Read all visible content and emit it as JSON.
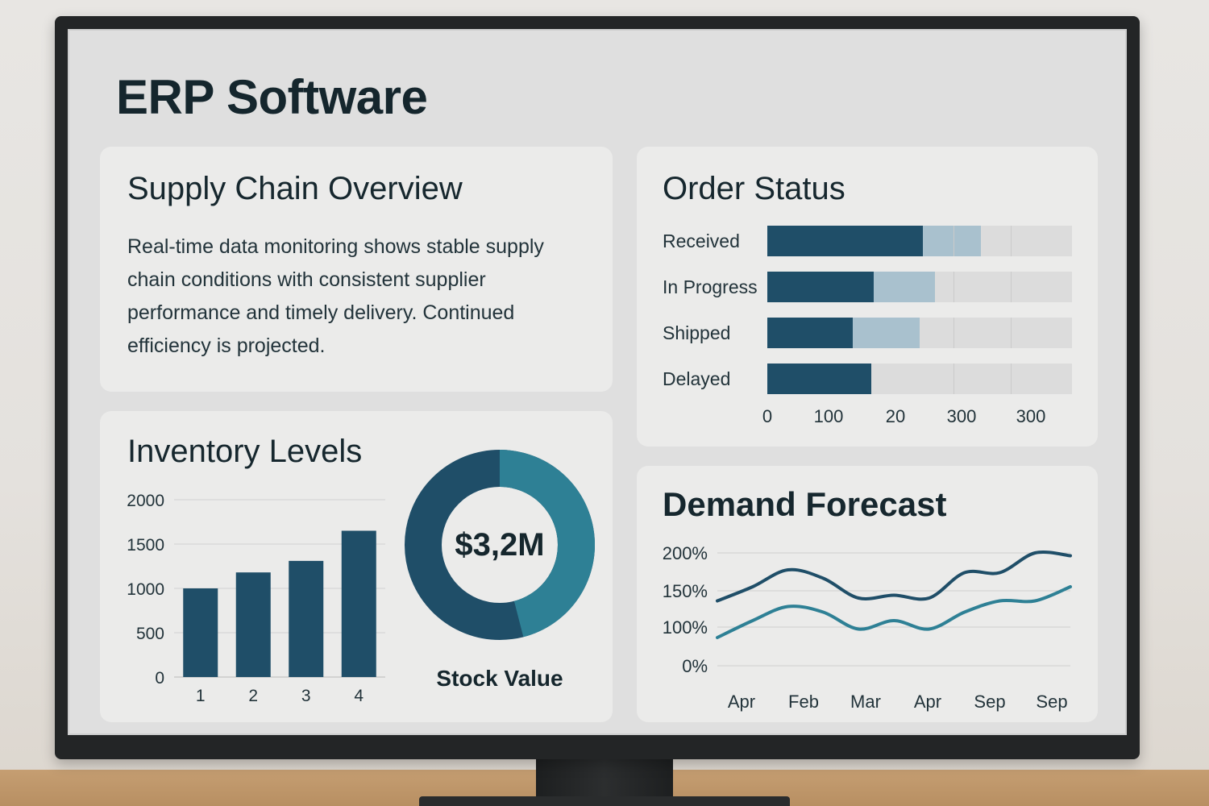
{
  "app": {
    "title": "ERP Software"
  },
  "colors": {
    "dark_teal": "#1f4e68",
    "mid_blue": "#a9c1ce",
    "light_gray": "#dcdcdc",
    "teal_accent": "#2e8095"
  },
  "supply_chain": {
    "title": "Supply Chain Overview",
    "text": "Real-time data monitoring shows stable supply chain conditions with consistent supplier performance and timely delivery. Continued efficiency is projected."
  },
  "order_status": {
    "title": "Order Status",
    "axis_labels": [
      "0",
      "100",
      "20",
      "300",
      "300"
    ],
    "rows": [
      {
        "label": "Received",
        "dark": 0.51,
        "light": 0.19
      },
      {
        "label": "In Progress",
        "dark": 0.35,
        "light": 0.2
      },
      {
        "label": "Shipped",
        "dark": 0.28,
        "light": 0.22
      },
      {
        "label": "Delayed",
        "dark": 0.34,
        "light": 0.0
      }
    ]
  },
  "inventory": {
    "title": "Inventory Levels",
    "stock_value": "$3,2M",
    "stock_caption": "Stock Value",
    "donut_share": 0.46
  },
  "demand_forecast": {
    "title": "Demand Forecast"
  },
  "chart_data": [
    {
      "type": "bar",
      "title": "Inventory Levels",
      "categories": [
        "1",
        "2",
        "3",
        "4"
      ],
      "values": [
        1000,
        1180,
        1310,
        1650
      ],
      "yticks": [
        "0",
        "500",
        "1000",
        "1500",
        "2000"
      ],
      "ylim": [
        0,
        2000
      ],
      "grid": true
    },
    {
      "type": "line",
      "title": "Demand Forecast",
      "xlabels": [
        "Apr",
        "Feb",
        "Mar",
        "Apr",
        "Sep",
        "Sep"
      ],
      "yticks": [
        "0%",
        "100%",
        "150%",
        "200%"
      ],
      "grid": true,
      "series": [
        {
          "values": [
            115,
            140,
            170,
            155,
            120,
            125,
            120,
            165,
            165,
            200,
            195
          ]
        },
        {
          "values": [
            50,
            80,
            105,
            95,
            65,
            80,
            65,
            95,
            115,
            115,
            140
          ]
        }
      ]
    }
  ]
}
